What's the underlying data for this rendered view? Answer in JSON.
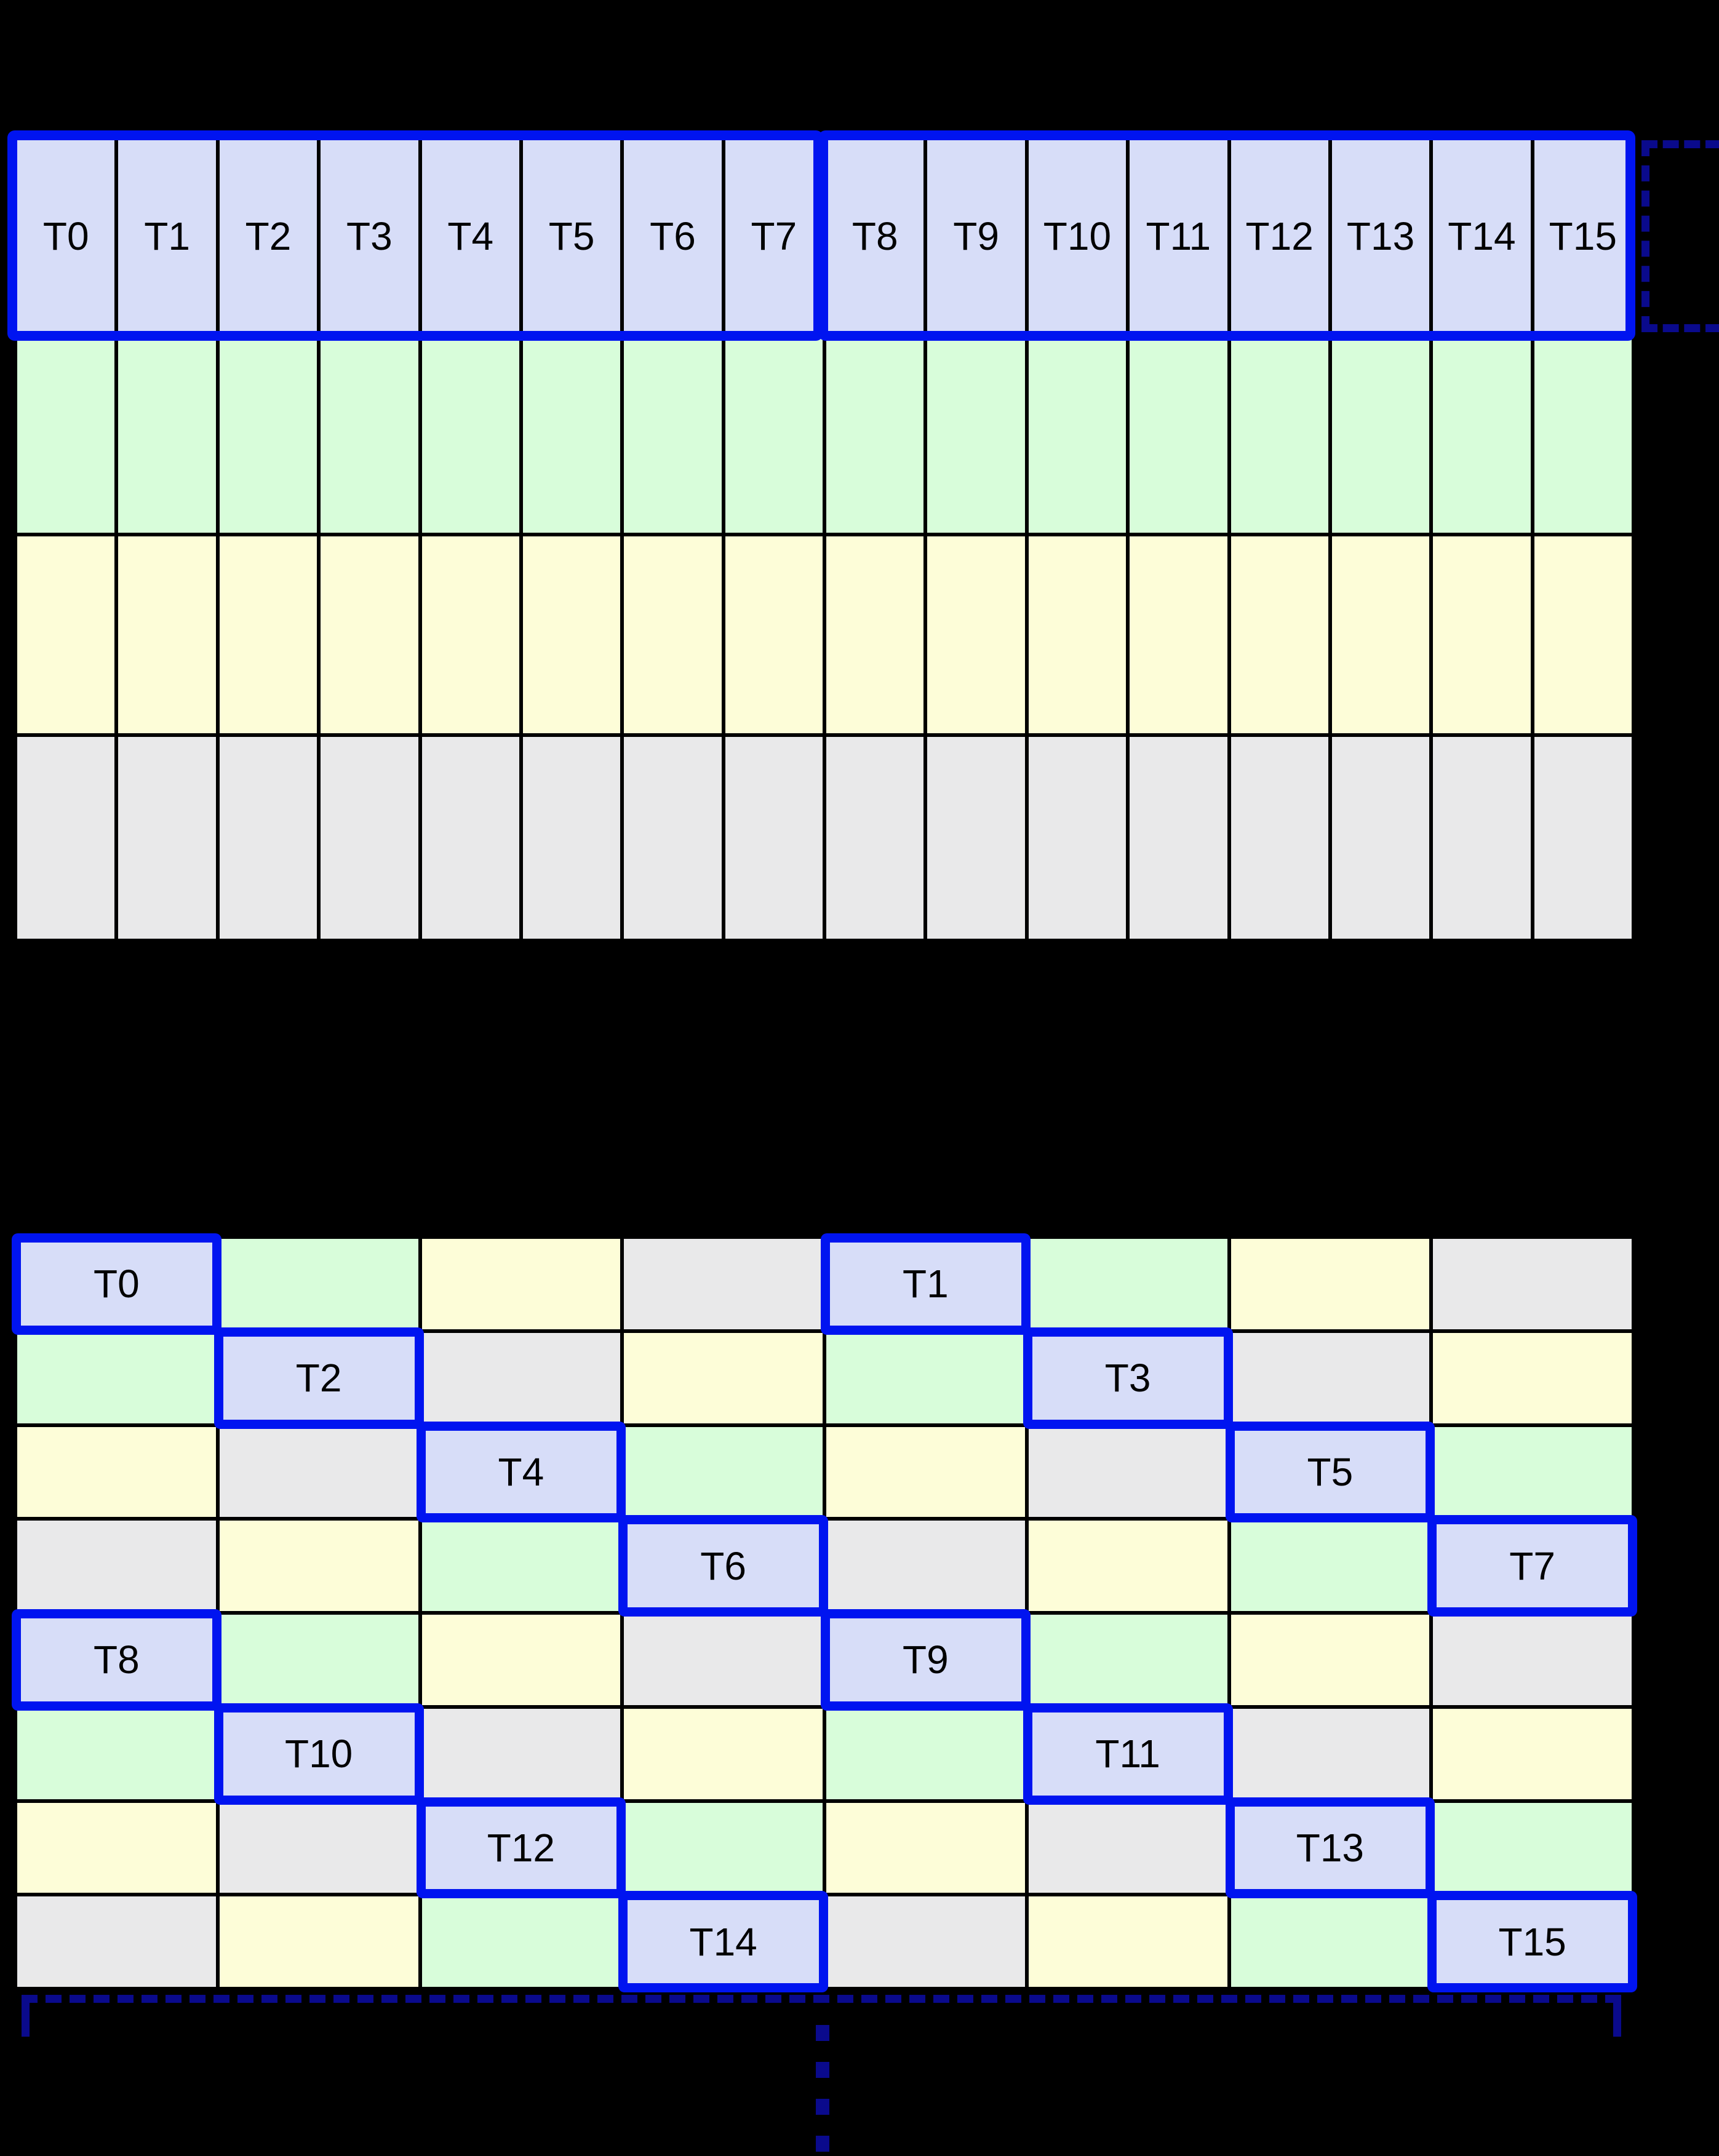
{
  "figure": {
    "colors": {
      "background": "#000000",
      "grid_line": "#000000",
      "thread_cell": "#d7ddf8",
      "green_cell": "#d8fdda",
      "yellow_cell": "#fdfdd8",
      "gray_cell": "#e9e9ea",
      "highlight_blue": "#0014f0",
      "bracket_navy": "#0a0a8c",
      "label_text": "#000000"
    },
    "top_grid": {
      "columns": 16,
      "row_count": 4,
      "thread_row_labels": [
        "T0",
        "T1",
        "T2",
        "T3",
        "T4",
        "T5",
        "T6",
        "T7",
        "T8",
        "T9",
        "T10",
        "T11",
        "T12",
        "T13",
        "T14",
        "T15"
      ],
      "warp_groups": [
        {
          "first_label": "T0",
          "last_label": "T7"
        },
        {
          "first_label": "T8",
          "last_label": "T15"
        }
      ],
      "lower_row_colors": [
        "green",
        "yellow",
        "gray"
      ]
    },
    "bottom_grid": {
      "columns": 8,
      "rows": 8,
      "color_matrix": [
        [
          "thread",
          "green",
          "yellow",
          "gray",
          "thread",
          "green",
          "yellow",
          "gray"
        ],
        [
          "green",
          "thread",
          "gray",
          "yellow",
          "green",
          "thread",
          "gray",
          "yellow"
        ],
        [
          "yellow",
          "gray",
          "thread",
          "green",
          "yellow",
          "gray",
          "thread",
          "green"
        ],
        [
          "gray",
          "yellow",
          "green",
          "thread",
          "gray",
          "yellow",
          "green",
          "thread"
        ],
        [
          "thread",
          "green",
          "yellow",
          "gray",
          "thread",
          "green",
          "yellow",
          "gray"
        ],
        [
          "green",
          "thread",
          "gray",
          "yellow",
          "green",
          "thread",
          "gray",
          "yellow"
        ],
        [
          "yellow",
          "gray",
          "thread",
          "green",
          "yellow",
          "gray",
          "thread",
          "green"
        ],
        [
          "gray",
          "yellow",
          "green",
          "thread",
          "gray",
          "yellow",
          "green",
          "thread"
        ]
      ],
      "threads": [
        {
          "label": "T0",
          "row": 0,
          "col": 0
        },
        {
          "label": "T1",
          "row": 0,
          "col": 4
        },
        {
          "label": "T2",
          "row": 1,
          "col": 1
        },
        {
          "label": "T3",
          "row": 1,
          "col": 5
        },
        {
          "label": "T4",
          "row": 2,
          "col": 2
        },
        {
          "label": "T5",
          "row": 2,
          "col": 6
        },
        {
          "label": "T6",
          "row": 3,
          "col": 3
        },
        {
          "label": "T7",
          "row": 3,
          "col": 7
        },
        {
          "label": "T8",
          "row": 4,
          "col": 0
        },
        {
          "label": "T9",
          "row": 4,
          "col": 4
        },
        {
          "label": "T10",
          "row": 5,
          "col": 1
        },
        {
          "label": "T11",
          "row": 5,
          "col": 5
        },
        {
          "label": "T12",
          "row": 6,
          "col": 2
        },
        {
          "label": "T13",
          "row": 6,
          "col": 6
        },
        {
          "label": "T14",
          "row": 7,
          "col": 3
        },
        {
          "label": "T15",
          "row": 7,
          "col": 7
        }
      ]
    },
    "annotations": {
      "continuation_dot_count": 4
    }
  }
}
